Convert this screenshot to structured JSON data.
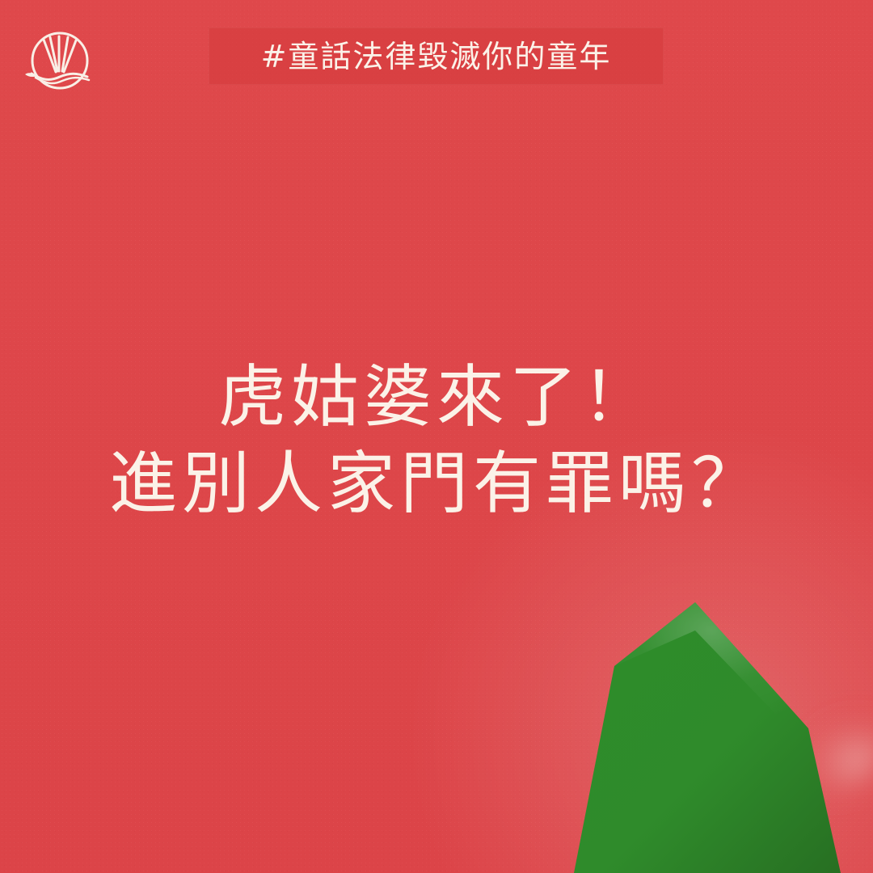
{
  "header": {
    "hashtag": "#童話法律毀滅你的童年"
  },
  "main": {
    "title_lines": [
      "虎姑婆來了！",
      "進別人家門有罪嗎？"
    ]
  },
  "decor": {
    "logo_icon": "chopsticks-circle-icon",
    "mountain_icon": "green-mountain-icon",
    "colors": {
      "background": "#df474b",
      "text": "#fbf2e8",
      "mountain": "#2f8b2a"
    }
  }
}
